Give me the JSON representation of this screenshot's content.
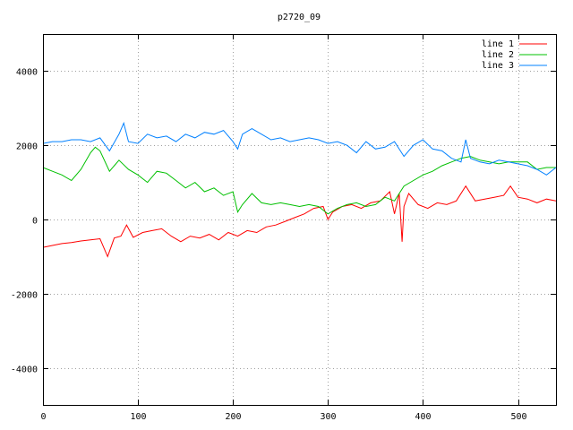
{
  "chart_data": {
    "type": "line",
    "title": "p2720_09",
    "xlabel": "",
    "ylabel": "",
    "xlim": [
      0,
      540
    ],
    "ylim": [
      -5000,
      5000
    ],
    "xticks": [
      0,
      100,
      200,
      300,
      400,
      500
    ],
    "yticks": [
      -4000,
      -2000,
      0,
      2000,
      4000
    ],
    "grid": true,
    "legend_position": "top-right",
    "series": [
      {
        "name": "line 1",
        "color": "#ff0000",
        "x": [
          0,
          10,
          20,
          30,
          40,
          50,
          60,
          68,
          75,
          82,
          88,
          95,
          105,
          115,
          125,
          135,
          145,
          155,
          165,
          175,
          185,
          195,
          205,
          215,
          225,
          235,
          245,
          255,
          265,
          275,
          285,
          295,
          300,
          305,
          315,
          325,
          335,
          345,
          355,
          365,
          370,
          375,
          378,
          380,
          385,
          395,
          405,
          415,
          425,
          435,
          445,
          455,
          465,
          475,
          485,
          492,
          500,
          510,
          520,
          530,
          540
        ],
        "values": [
          -750,
          -700,
          -650,
          -620,
          -580,
          -550,
          -520,
          -1000,
          -500,
          -450,
          -150,
          -480,
          -350,
          -300,
          -250,
          -450,
          -600,
          -450,
          -500,
          -400,
          -550,
          -350,
          -450,
          -300,
          -350,
          -200,
          -150,
          -50,
          50,
          150,
          300,
          350,
          0,
          200,
          350,
          400,
          300,
          450,
          500,
          750,
          150,
          700,
          -600,
          350,
          700,
          400,
          300,
          450,
          400,
          500,
          900,
          500,
          550,
          600,
          650,
          900,
          600,
          550,
          450,
          550,
          500
        ]
      },
      {
        "name": "line 2",
        "color": "#00c000",
        "x": [
          0,
          10,
          20,
          30,
          40,
          50,
          55,
          60,
          70,
          80,
          90,
          100,
          110,
          120,
          130,
          140,
          150,
          160,
          170,
          180,
          190,
          200,
          205,
          210,
          220,
          230,
          240,
          250,
          260,
          270,
          280,
          290,
          300,
          310,
          320,
          330,
          340,
          350,
          360,
          370,
          380,
          390,
          400,
          410,
          420,
          430,
          440,
          450,
          460,
          470,
          480,
          490,
          500,
          510,
          520,
          530,
          540
        ],
        "values": [
          1400,
          1300,
          1200,
          1050,
          1350,
          1800,
          1950,
          1850,
          1300,
          1600,
          1350,
          1200,
          1000,
          1300,
          1250,
          1050,
          850,
          1000,
          750,
          850,
          650,
          750,
          200,
          400,
          700,
          450,
          400,
          450,
          400,
          350,
          400,
          350,
          150,
          300,
          400,
          450,
          350,
          400,
          600,
          500,
          900,
          1050,
          1200,
          1300,
          1450,
          1550,
          1650,
          1700,
          1600,
          1550,
          1500,
          1550,
          1550,
          1550,
          1350,
          1400,
          1400
        ]
      },
      {
        "name": "line 3",
        "color": "#0080ff",
        "x": [
          0,
          10,
          20,
          30,
          40,
          50,
          60,
          70,
          80,
          85,
          90,
          100,
          110,
          120,
          130,
          140,
          150,
          160,
          170,
          180,
          190,
          200,
          205,
          210,
          220,
          230,
          240,
          250,
          260,
          270,
          280,
          290,
          300,
          310,
          320,
          330,
          340,
          350,
          360,
          370,
          380,
          390,
          400,
          410,
          420,
          430,
          440,
          445,
          450,
          460,
          470,
          480,
          490,
          500,
          510,
          520,
          530,
          540
        ],
        "values": [
          2050,
          2100,
          2100,
          2150,
          2150,
          2100,
          2200,
          1850,
          2300,
          2600,
          2100,
          2050,
          2300,
          2200,
          2250,
          2100,
          2300,
          2200,
          2350,
          2300,
          2400,
          2100,
          1900,
          2300,
          2450,
          2300,
          2150,
          2200,
          2100,
          2150,
          2200,
          2150,
          2050,
          2100,
          2000,
          1800,
          2100,
          1900,
          1950,
          2100,
          1700,
          2000,
          2150,
          1900,
          1850,
          1650,
          1550,
          2150,
          1650,
          1550,
          1500,
          1600,
          1550,
          1500,
          1450,
          1350,
          1200,
          1400
        ]
      }
    ]
  }
}
